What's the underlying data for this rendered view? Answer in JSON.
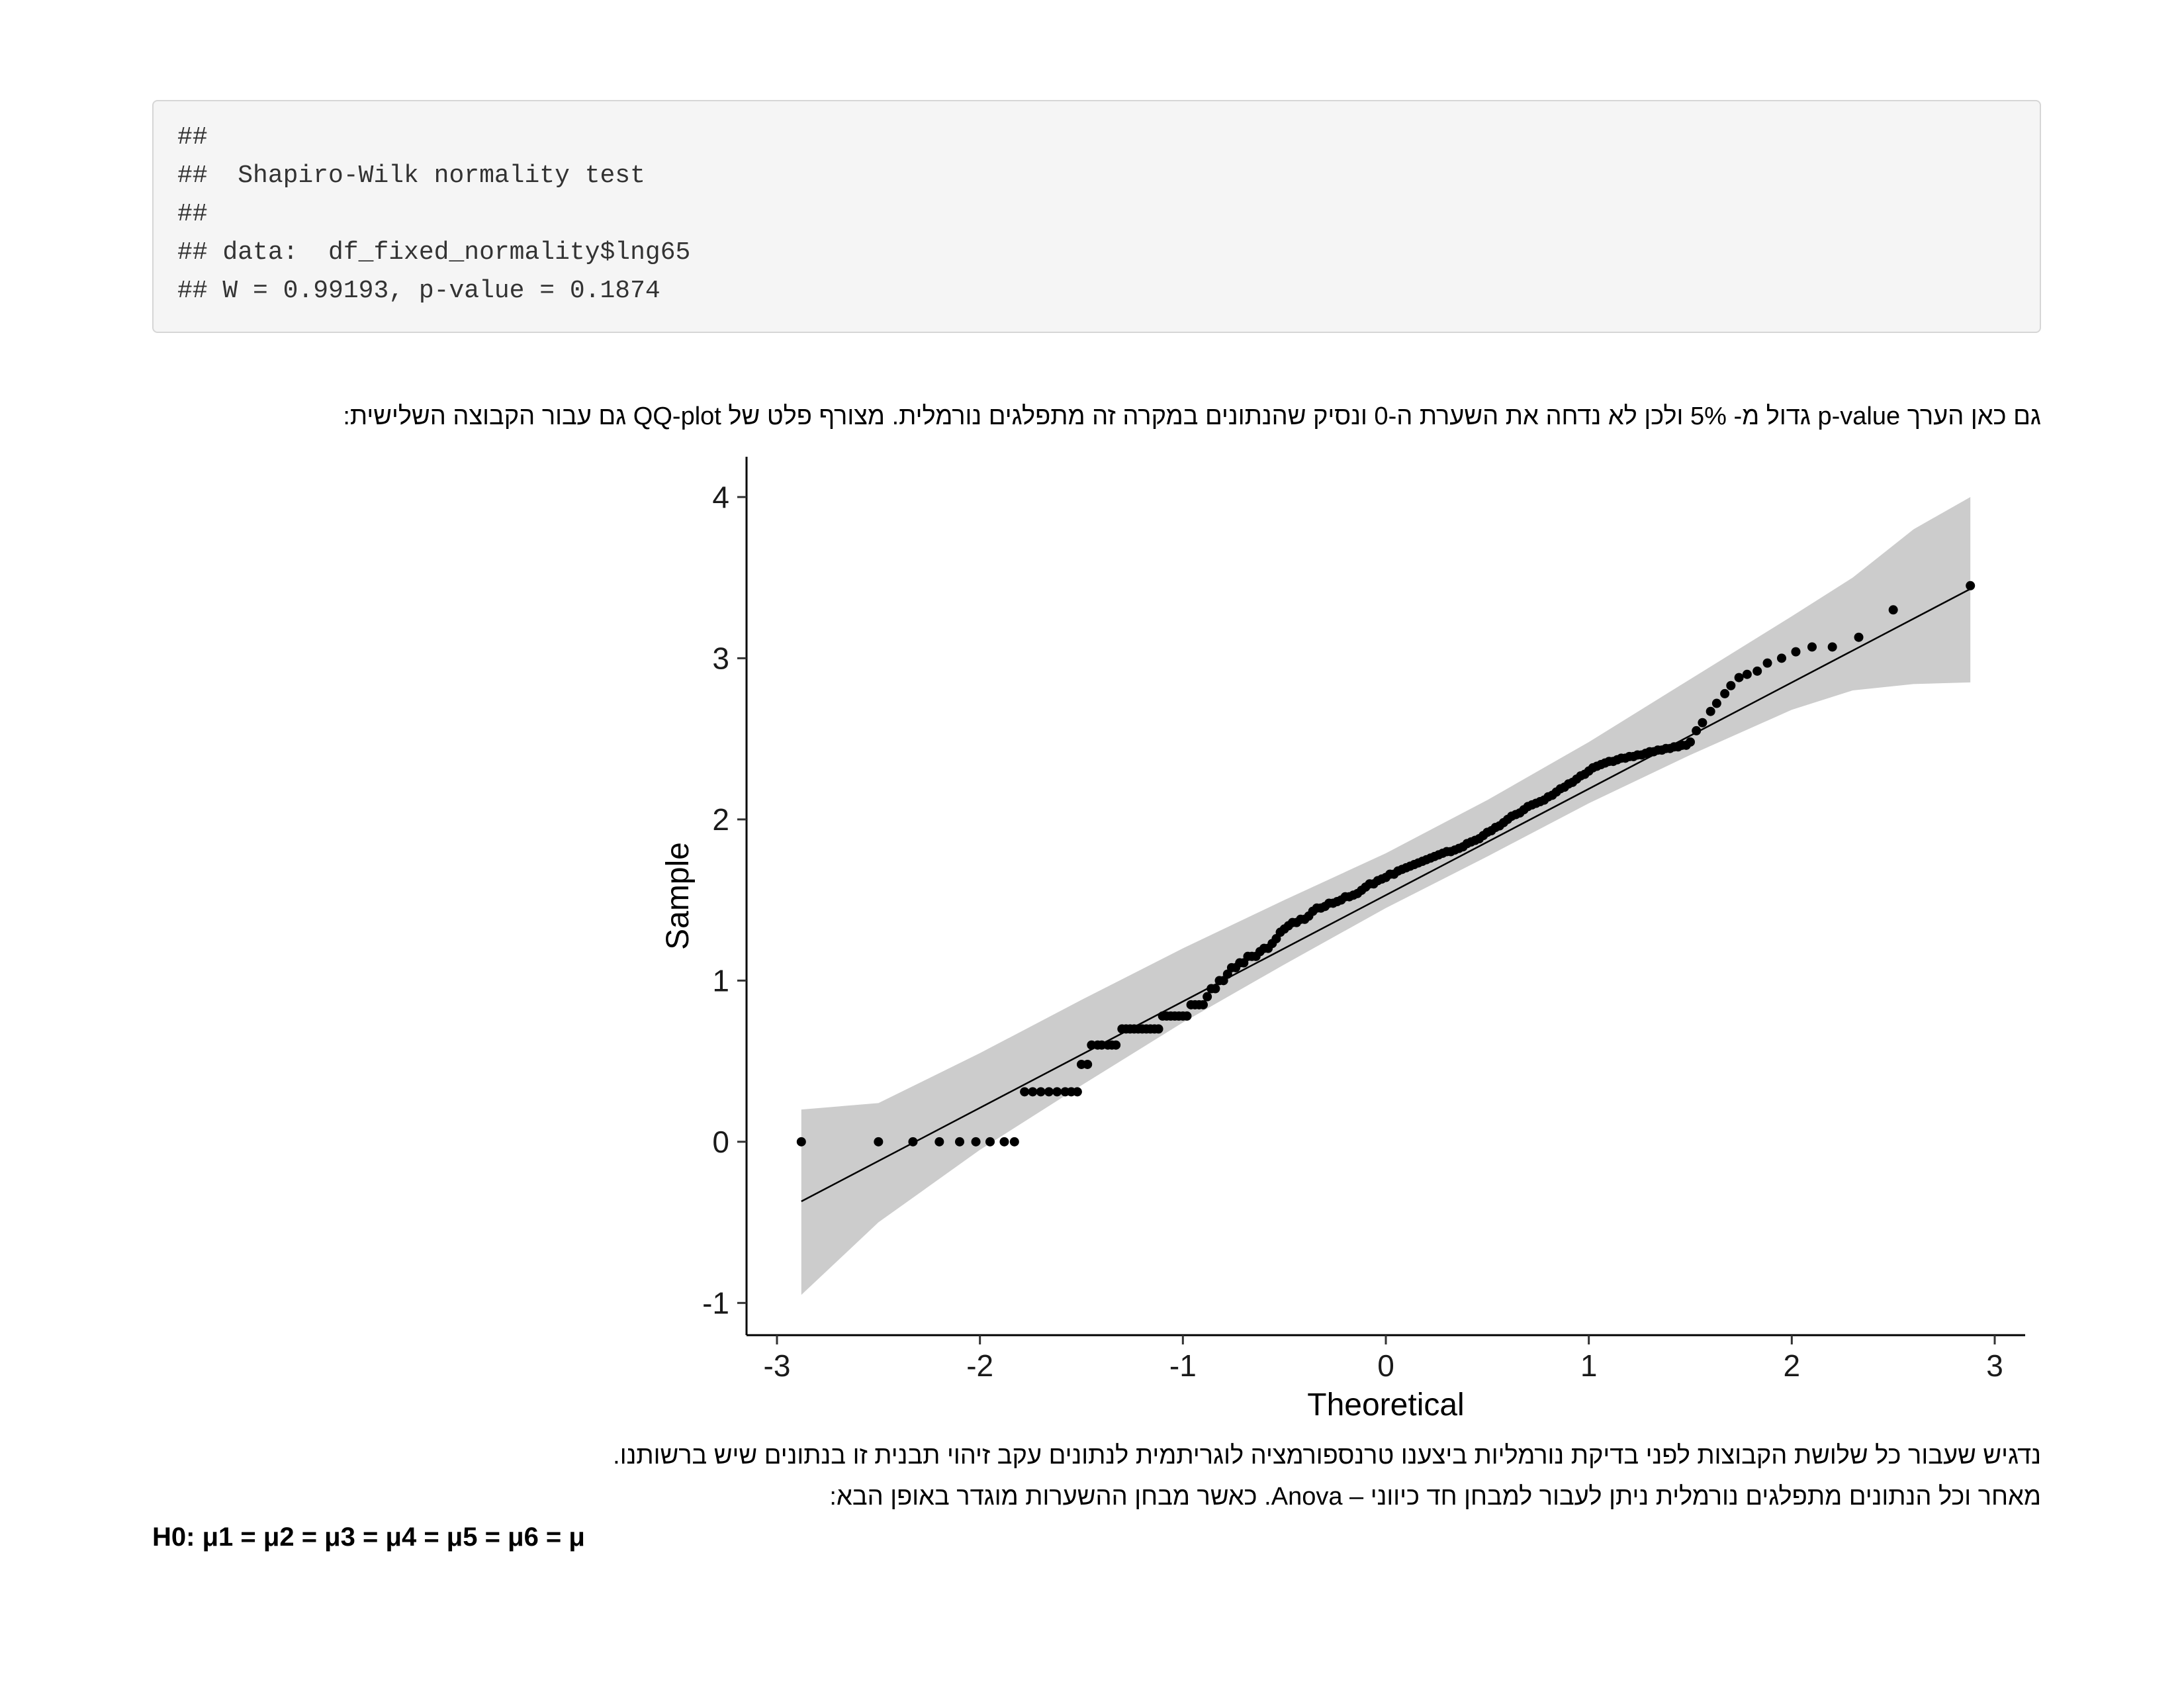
{
  "code_output": {
    "lines": [
      "##",
      "##  Shapiro-Wilk normality test",
      "##",
      "## data:  df_fixed_normality$lng65",
      "## W = 0.99193, p-value = 0.1874"
    ]
  },
  "paragraphs": {
    "p1": "גם כאן הערך p-value גדול מ- 5% ולכן לא נדחה את השערת ה-0 ונסיק שהנתונים במקרה זה מתפלגים נורמלית. מצורף פלט של QQ-plot גם עבור הקבוצה השלישית:",
    "p2": "נדגיש שעבור כל שלושת הקבוצות לפני בדיקת נורמליות ביצענו טרנספורמציה לוגריתמית לנתונים עקב זיהוי תבנית זו בנתונים שיש ברשותנו.",
    "p3": "מאחר וכל הנתונים מתפלגים נורמלית ניתן לעבור למבחן חד כיווני – Anova. כאשר מבחן ההשערות מוגדר באופן הבא:",
    "h0": "H0: μ1 = μ2 = μ3 = μ4 = μ5 = μ6 = μ"
  },
  "chart_data": {
    "type": "scatter",
    "xlabel": "Theoretical",
    "ylabel": "Sample",
    "xlim": [
      -3.15,
      3.15
    ],
    "ylim": [
      -1.2,
      4.25
    ],
    "x_ticks": [
      -3,
      -2,
      -1,
      0,
      1,
      2,
      3
    ],
    "x_tick_labels": [
      "-3",
      "-2",
      "-1",
      "0",
      "1",
      "2",
      "3"
    ],
    "y_ticks": [
      -1,
      0,
      1,
      2,
      3,
      4
    ],
    "y_tick_labels": [
      "-1",
      "0",
      "1",
      "2",
      "3",
      "4"
    ],
    "grid": false,
    "reference_line": {
      "x": [
        -2.88,
        2.88
      ],
      "y": [
        -0.37,
        3.43
      ]
    },
    "confidence_band": {
      "x": [
        -2.88,
        -2.5,
        -2.0,
        -1.5,
        -1.0,
        -0.5,
        0.0,
        0.5,
        1.0,
        1.5,
        2.0,
        2.3,
        2.6,
        2.88
      ],
      "lower": [
        -0.95,
        -0.5,
        -0.05,
        0.35,
        0.74,
        1.1,
        1.45,
        1.77,
        2.1,
        2.4,
        2.68,
        2.8,
        2.84,
        2.85
      ],
      "upper": [
        0.2,
        0.24,
        0.55,
        0.88,
        1.2,
        1.5,
        1.79,
        2.12,
        2.48,
        2.87,
        3.26,
        3.5,
        3.8,
        4.0
      ]
    },
    "colors": {
      "points": "#000000",
      "band": "#cccccc",
      "line": "#000000"
    },
    "points": {
      "x": [
        -2.88,
        -2.5,
        -2.33,
        -2.2,
        -2.1,
        -2.02,
        -1.95,
        -1.88,
        -1.83,
        -1.78,
        -1.74,
        -1.7,
        -1.66,
        -1.62,
        -1.58,
        -1.55,
        -1.52,
        -1.5,
        -1.47,
        -1.45,
        -1.42,
        -1.4,
        -1.37,
        -1.35,
        -1.33,
        -1.3,
        -1.28,
        -1.26,
        -1.24,
        -1.22,
        -1.2,
        -1.18,
        -1.16,
        -1.14,
        -1.12,
        -1.1,
        -1.08,
        -1.06,
        -1.04,
        -1.02,
        -1.0,
        -0.98,
        -0.96,
        -0.94,
        -0.92,
        -0.9,
        -0.88,
        -0.86,
        -0.84,
        -0.82,
        -0.8,
        -0.78,
        -0.76,
        -0.74,
        -0.72,
        -0.7,
        -0.68,
        -0.66,
        -0.64,
        -0.62,
        -0.6,
        -0.58,
        -0.56,
        -0.54,
        -0.52,
        -0.5,
        -0.48,
        -0.46,
        -0.44,
        -0.42,
        -0.4,
        -0.38,
        -0.36,
        -0.34,
        -0.32,
        -0.3,
        -0.28,
        -0.26,
        -0.24,
        -0.22,
        -0.2,
        -0.18,
        -0.16,
        -0.14,
        -0.12,
        -0.1,
        -0.08,
        -0.06,
        -0.04,
        -0.02,
        0.0,
        0.02,
        0.04,
        0.06,
        0.08,
        0.1,
        0.12,
        0.14,
        0.16,
        0.18,
        0.2,
        0.22,
        0.24,
        0.26,
        0.28,
        0.3,
        0.32,
        0.34,
        0.36,
        0.38,
        0.4,
        0.42,
        0.44,
        0.46,
        0.48,
        0.5,
        0.52,
        0.54,
        0.56,
        0.58,
        0.6,
        0.62,
        0.64,
        0.66,
        0.68,
        0.7,
        0.72,
        0.74,
        0.76,
        0.78,
        0.8,
        0.82,
        0.84,
        0.86,
        0.88,
        0.9,
        0.92,
        0.94,
        0.96,
        0.98,
        1.0,
        1.02,
        1.04,
        1.06,
        1.08,
        1.1,
        1.12,
        1.14,
        1.16,
        1.18,
        1.2,
        1.22,
        1.24,
        1.26,
        1.28,
        1.3,
        1.32,
        1.34,
        1.36,
        1.38,
        1.4,
        1.42,
        1.44,
        1.46,
        1.48,
        1.5,
        1.53,
        1.56,
        1.6,
        1.63,
        1.67,
        1.7,
        1.74,
        1.78,
        1.83,
        1.88,
        1.95,
        2.02,
        2.1,
        2.2,
        2.33,
        2.5,
        2.88
      ],
      "y": [
        0.0,
        0.0,
        0.0,
        0.0,
        0.0,
        0.0,
        0.0,
        0.0,
        0.0,
        0.31,
        0.31,
        0.31,
        0.31,
        0.31,
        0.31,
        0.31,
        0.31,
        0.48,
        0.48,
        0.6,
        0.6,
        0.6,
        0.6,
        0.6,
        0.6,
        0.7,
        0.7,
        0.7,
        0.7,
        0.7,
        0.7,
        0.7,
        0.7,
        0.7,
        0.7,
        0.78,
        0.78,
        0.78,
        0.78,
        0.78,
        0.78,
        0.78,
        0.85,
        0.85,
        0.85,
        0.85,
        0.9,
        0.95,
        0.95,
        1.0,
        1.0,
        1.04,
        1.08,
        1.08,
        1.11,
        1.11,
        1.15,
        1.15,
        1.15,
        1.18,
        1.2,
        1.2,
        1.23,
        1.26,
        1.3,
        1.32,
        1.34,
        1.36,
        1.36,
        1.38,
        1.38,
        1.4,
        1.43,
        1.45,
        1.45,
        1.46,
        1.48,
        1.48,
        1.49,
        1.5,
        1.52,
        1.52,
        1.53,
        1.54,
        1.56,
        1.58,
        1.6,
        1.6,
        1.62,
        1.63,
        1.64,
        1.66,
        1.66,
        1.68,
        1.69,
        1.7,
        1.71,
        1.72,
        1.73,
        1.74,
        1.75,
        1.76,
        1.77,
        1.78,
        1.79,
        1.8,
        1.8,
        1.81,
        1.82,
        1.83,
        1.85,
        1.86,
        1.87,
        1.88,
        1.9,
        1.92,
        1.93,
        1.95,
        1.96,
        1.98,
        2.0,
        2.02,
        2.03,
        2.04,
        2.06,
        2.08,
        2.09,
        2.1,
        2.11,
        2.12,
        2.14,
        2.15,
        2.17,
        2.19,
        2.2,
        2.22,
        2.23,
        2.25,
        2.27,
        2.28,
        2.3,
        2.32,
        2.33,
        2.34,
        2.35,
        2.36,
        2.36,
        2.37,
        2.38,
        2.38,
        2.39,
        2.39,
        2.4,
        2.4,
        2.41,
        2.42,
        2.42,
        2.43,
        2.43,
        2.44,
        2.44,
        2.45,
        2.45,
        2.46,
        2.46,
        2.48,
        2.55,
        2.6,
        2.67,
        2.72,
        2.78,
        2.83,
        2.88,
        2.9,
        2.92,
        2.97,
        3.0,
        3.04,
        3.07,
        3.07,
        3.13,
        3.3,
        3.45
      ]
    }
  }
}
